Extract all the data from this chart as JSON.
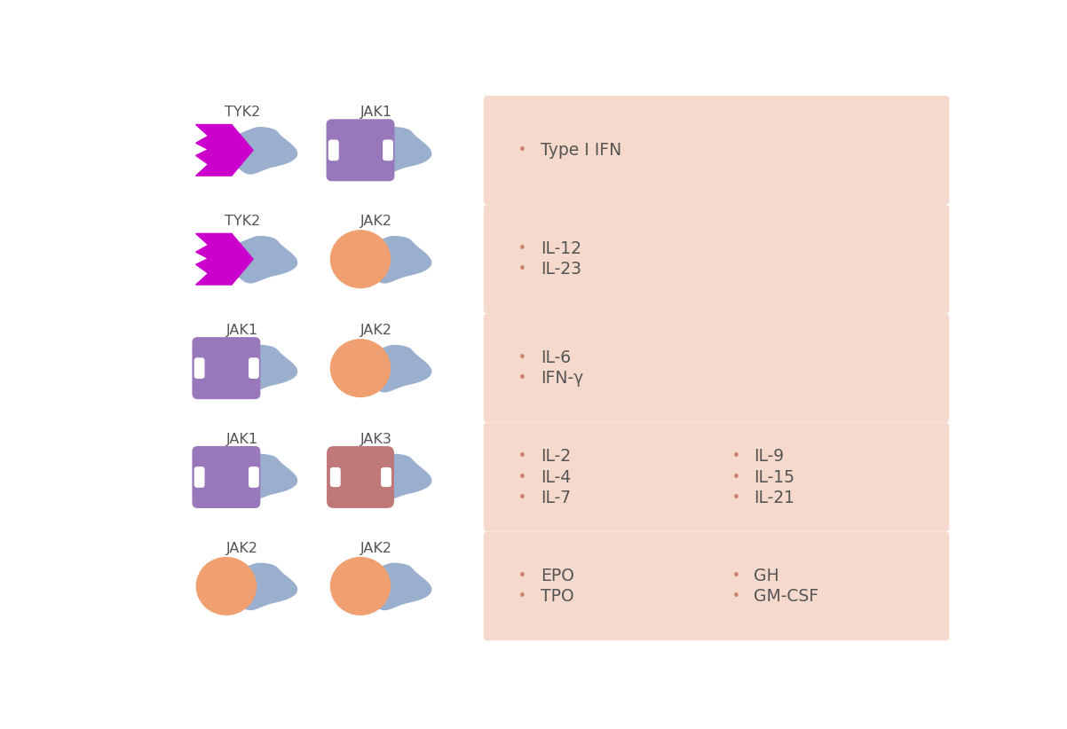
{
  "background_color": "#ffffff",
  "panel_bg": "#f5d9cc",
  "title_color": "#555555",
  "text_color": "#555555",
  "bullet_color": "#c9806a",
  "blue_blob_color": "#9aaece",
  "rows": [
    {
      "kinase1": "TYK2",
      "kinase2": "JAK1",
      "shape1": "tyk2",
      "shape2": "jak1",
      "color1": "#cc00cc",
      "color2": "#9977bb",
      "labels": [
        [
          "Type I IFN"
        ]
      ],
      "label_cols": 1
    },
    {
      "kinase1": "TYK2",
      "kinase2": "JAK2",
      "shape1": "tyk2",
      "shape2": "jak2_circle",
      "color1": "#cc00cc",
      "color2": "#f0a070",
      "labels": [
        [
          "IL-12",
          "IL-23"
        ]
      ],
      "label_cols": 1
    },
    {
      "kinase1": "JAK1",
      "kinase2": "JAK2",
      "shape1": "jak1",
      "shape2": "jak2_circle",
      "color1": "#9977bb",
      "color2": "#f0a070",
      "labels": [
        [
          "IL-6",
          "IFN-γ"
        ]
      ],
      "label_cols": 1
    },
    {
      "kinase1": "JAK1",
      "kinase2": "JAK3",
      "shape1": "jak1",
      "shape2": "jak3",
      "color1": "#9977bb",
      "color2": "#c07878",
      "labels": [
        [
          "IL-2",
          "IL-4",
          "IL-7"
        ],
        [
          "IL-9",
          "IL-15",
          "IL-21"
        ]
      ],
      "label_cols": 2
    },
    {
      "kinase1": "JAK2",
      "kinase2": "JAK2",
      "shape1": "jak2_circle",
      "shape2": "jak2_circle",
      "color1": "#f0a070",
      "color2": "#f0a070",
      "labels": [
        [
          "EPO",
          "TPO"
        ],
        [
          "GH",
          "GM-CSF"
        ]
      ],
      "label_cols": 2
    }
  ]
}
